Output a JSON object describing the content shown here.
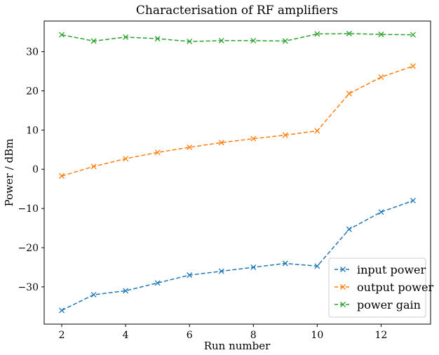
{
  "chart_data": {
    "type": "line",
    "title": "Characterisation of RF amplifiers",
    "xlabel": "Run number",
    "ylabel": "Power / dBm",
    "xlim": [
      1.45,
      13.55
    ],
    "ylim": [
      -39.5,
      37.8
    ],
    "x_ticks": [
      2,
      4,
      6,
      8,
      10,
      12
    ],
    "y_ticks": [
      -30,
      -20,
      -10,
      0,
      10,
      20,
      30
    ],
    "x": [
      2,
      3,
      4,
      5,
      6,
      7,
      8,
      9,
      10,
      11,
      12,
      13
    ],
    "series": [
      {
        "name": "input power",
        "color": "#1f77b4",
        "values": [
          -36.0,
          -32.0,
          -31.0,
          -29.0,
          -27.0,
          -26.0,
          -25.0,
          -24.0,
          -24.7,
          -15.3,
          -10.9,
          -8.0
        ]
      },
      {
        "name": "output power",
        "color": "#ff7f0e",
        "values": [
          -1.7,
          0.7,
          2.7,
          4.3,
          5.6,
          6.8,
          7.8,
          8.7,
          9.8,
          19.3,
          23.5,
          26.3
        ]
      },
      {
        "name": "power gain",
        "color": "#2ca02c",
        "values": [
          34.3,
          32.7,
          33.7,
          33.3,
          32.6,
          32.8,
          32.8,
          32.7,
          34.5,
          34.6,
          34.4,
          34.3
        ]
      }
    ],
    "linestyle": "dashed",
    "marker": "x",
    "grid": false,
    "legend_position": "lower-right"
  }
}
